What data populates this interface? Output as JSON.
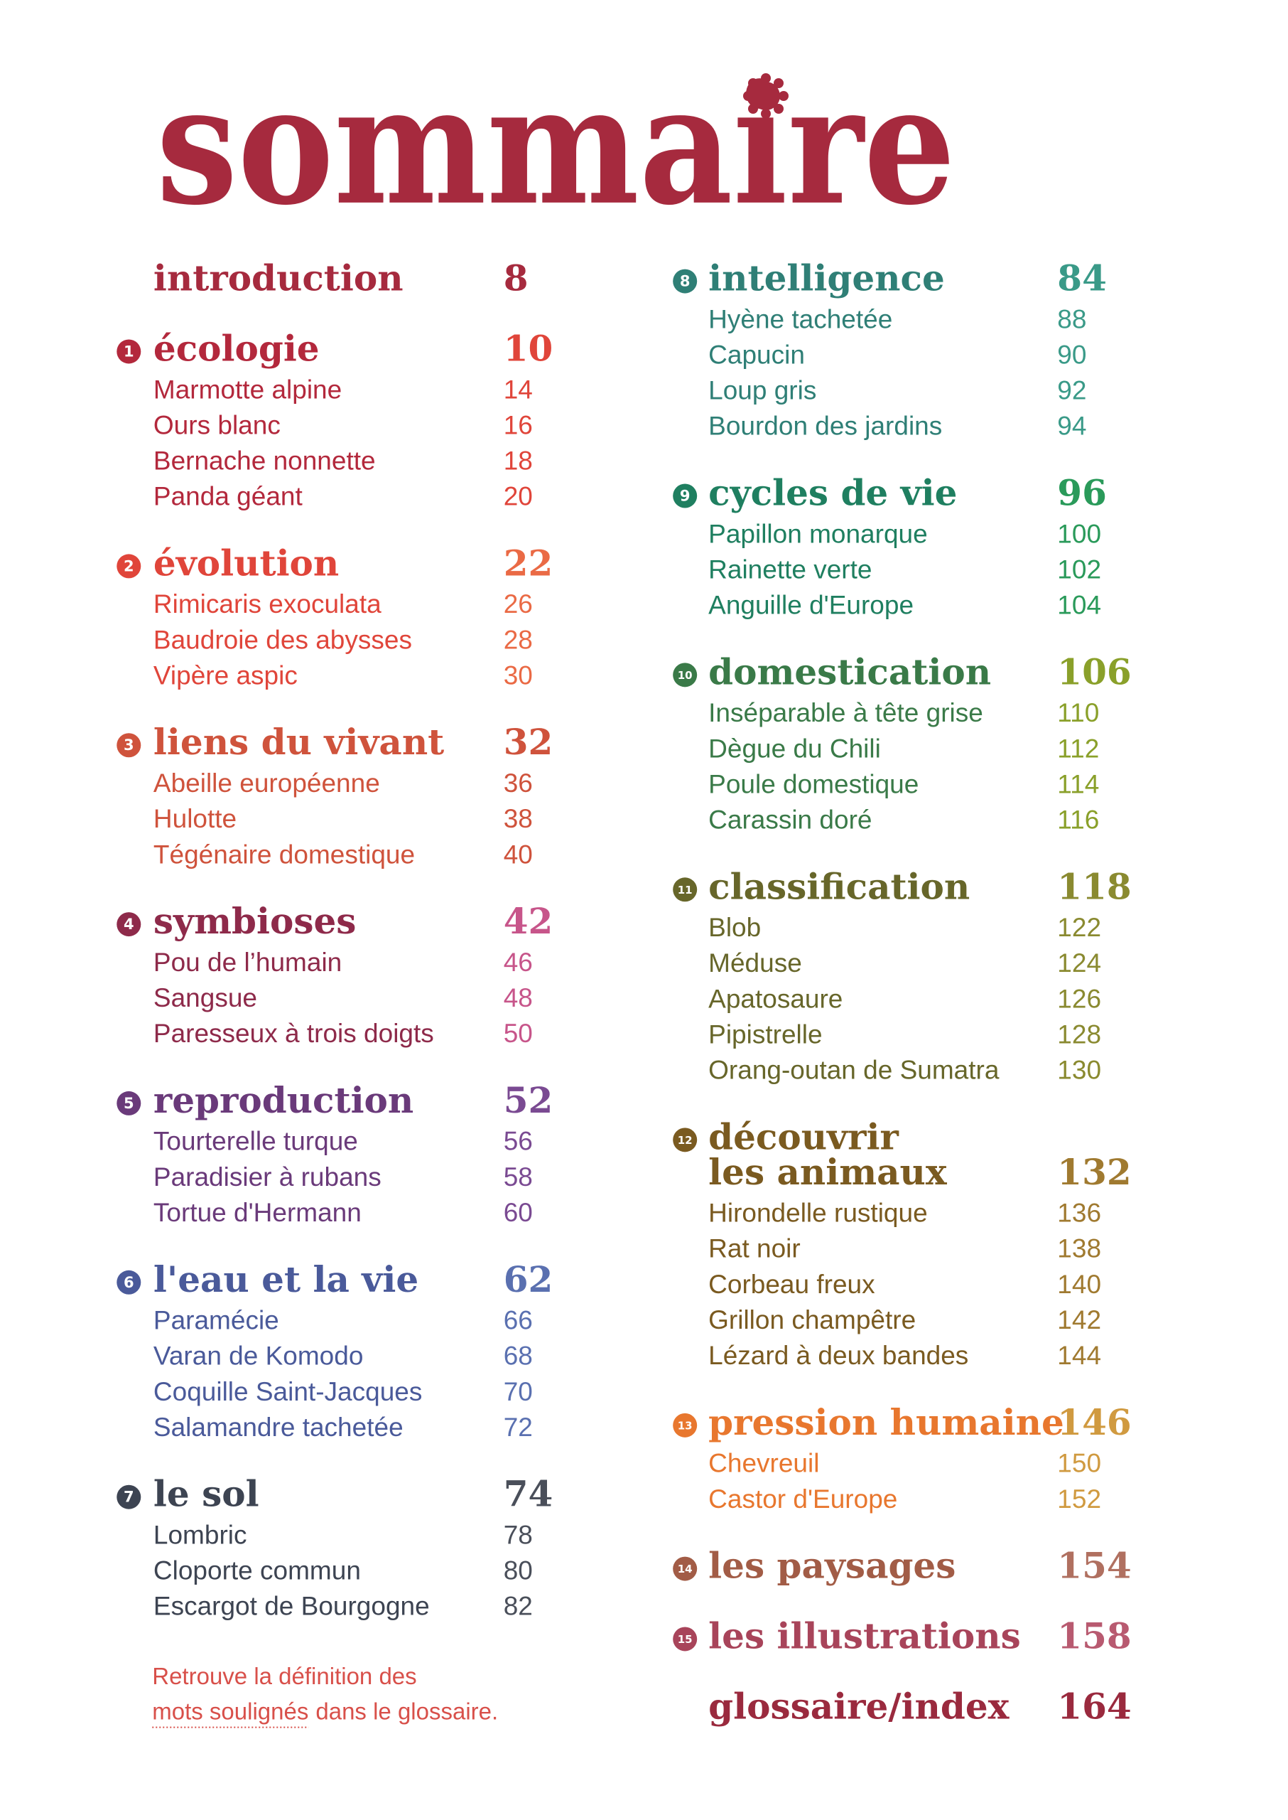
{
  "title": "sommaire",
  "columns": [
    [
      {
        "title": "introduction",
        "page": 8,
        "color": "#a62a3e",
        "page_color": "#a62a3e",
        "items": []
      },
      {
        "number": 1,
        "title": "écologie",
        "page": 10,
        "color": "#b3283c",
        "page_color": "#e0453a",
        "items": [
          {
            "name": "Marmotte alpine",
            "page": 14
          },
          {
            "name": "Ours blanc",
            "page": 16
          },
          {
            "name": "Bernache nonnette",
            "page": 18
          },
          {
            "name": "Panda géant",
            "page": 20
          }
        ]
      },
      {
        "number": 2,
        "title": "évolution",
        "page": 22,
        "color": "#e0453a",
        "page_color": "#ea6a45",
        "items": [
          {
            "name": "Rimicaris exoculata",
            "page": 26
          },
          {
            "name": "Baudroie des abysses",
            "page": 28
          },
          {
            "name": "Vipère aspic",
            "page": 30
          }
        ]
      },
      {
        "number": 3,
        "title": "liens du vivant",
        "page": 32,
        "color": "#cf533c",
        "page_color": "#cf533c",
        "items": [
          {
            "name": "Abeille européenne",
            "page": 36
          },
          {
            "name": "Hulotte",
            "page": 38
          },
          {
            "name": "Tégénaire domestique",
            "page": 40
          }
        ]
      },
      {
        "number": 4,
        "title": "symbioses",
        "page": 42,
        "color": "#8e2a4a",
        "page_color": "#c7558a",
        "items": [
          {
            "name": "Pou de l’humain",
            "page": 46
          },
          {
            "name": "Sangsue",
            "page": 48
          },
          {
            "name": "Paresseux à trois doigts",
            "page": 50
          }
        ]
      },
      {
        "number": 5,
        "title": "reproduction",
        "page": 52,
        "color": "#6a3a7a",
        "page_color": "#7a4a92",
        "items": [
          {
            "name": "Tourterelle turque",
            "page": 56
          },
          {
            "name": "Paradisier à rubans",
            "page": 58
          },
          {
            "name": "Tortue d'Hermann",
            "page": 60
          }
        ]
      },
      {
        "number": 6,
        "title": "l'eau et la vie",
        "page": 62,
        "color": "#4a5a9a",
        "page_color": "#5a70b0",
        "items": [
          {
            "name": "Paramécie",
            "page": 66
          },
          {
            "name": "Varan de Komodo",
            "page": 68
          },
          {
            "name": "Coquille Saint-Jacques",
            "page": 70
          },
          {
            "name": "Salamandre tachetée",
            "page": 72
          }
        ]
      },
      {
        "number": 7,
        "title": "le sol",
        "page": 74,
        "color": "#3d4452",
        "page_color": "#4a4f5a",
        "items": [
          {
            "name": "Lombric",
            "page": 78
          },
          {
            "name": "Cloporte commun",
            "page": 80
          },
          {
            "name": "Escargot de Bourgogne",
            "page": 82
          }
        ]
      }
    ],
    [
      {
        "number": 8,
        "title": "intelligence",
        "page": 84,
        "color": "#2f7f76",
        "page_color": "#3a9a88",
        "items": [
          {
            "name": "Hyène tachetée",
            "page": 88
          },
          {
            "name": "Capucin",
            "page": 90
          },
          {
            "name": "Loup gris",
            "page": 92
          },
          {
            "name": "Bourdon des jardins",
            "page": 94
          }
        ]
      },
      {
        "number": 9,
        "title": "cycles de vie",
        "page": 96,
        "color": "#1f7f60",
        "page_color": "#2a9a5a",
        "items": [
          {
            "name": "Papillon monarque",
            "page": 100
          },
          {
            "name": "Rainette verte",
            "page": 102
          },
          {
            "name": "Anguille d'Europe",
            "page": 104
          }
        ]
      },
      {
        "number": 10,
        "title": "domestication",
        "page": 106,
        "color": "#3a7a48",
        "page_color": "#8aa02a",
        "items": [
          {
            "name": "Inséparable à tête grise",
            "page": 110
          },
          {
            "name": "Dègue du Chili",
            "page": 112
          },
          {
            "name": "Poule domestique",
            "page": 114
          },
          {
            "name": "Carassin doré",
            "page": 116
          }
        ]
      },
      {
        "number": 11,
        "title": "classification",
        "page": 118,
        "color": "#67662a",
        "page_color": "#8a8a30",
        "items": [
          {
            "name": "Blob",
            "page": 122
          },
          {
            "name": "Méduse",
            "page": 124
          },
          {
            "name": "Apatosaure",
            "page": 126
          },
          {
            "name": "Pipistrelle",
            "page": 128
          },
          {
            "name": "Orang-outan de Sumatra",
            "page": 130
          }
        ]
      },
      {
        "number": 12,
        "title": [
          "découvrir",
          "les animaux"
        ],
        "page": 132,
        "color": "#7a5a20",
        "page_color": "#a07a30",
        "items": [
          {
            "name": "Hirondelle rustique",
            "page": 136
          },
          {
            "name": "Rat noir",
            "page": 138
          },
          {
            "name": "Corbeau freux",
            "page": 140
          },
          {
            "name": "Grillon champêtre",
            "page": 142
          },
          {
            "name": "Lézard à deux bandes",
            "page": 144
          }
        ]
      },
      {
        "number": 13,
        "title": "pression humaine",
        "page": 146,
        "color": "#e8772e",
        "page_color": "#d09a40",
        "items": [
          {
            "name": "Chevreuil",
            "page": 150
          },
          {
            "name": "Castor d'Europe",
            "page": 152
          }
        ]
      },
      {
        "number": 14,
        "title": "les paysages",
        "page": 154,
        "color": "#a25c46",
        "page_color": "#b07060",
        "items": []
      },
      {
        "number": 15,
        "title": "les illustrations",
        "page": 158,
        "color": "#a8445a",
        "page_color": "#b85a70",
        "items": []
      },
      {
        "title": "glossaire/index",
        "page": 164,
        "color": "#9a2a3e",
        "page_color": "#9a2a3e",
        "items": []
      }
    ]
  ],
  "note": {
    "line1": "Retrouve la définition des",
    "underlined": "mots soulignés",
    "line2_rest": "dans le glossaire."
  }
}
